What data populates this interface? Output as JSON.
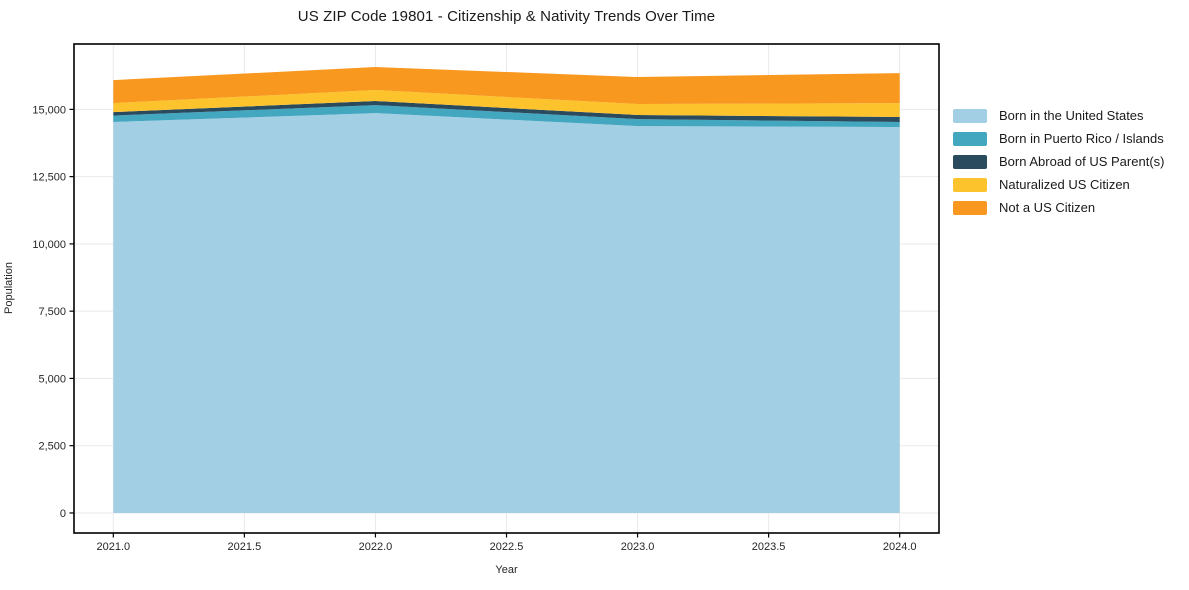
{
  "chart_data": {
    "type": "area",
    "stacked": true,
    "title": "US ZIP Code 19801 - Citizenship & Nativity Trends Over Time",
    "xlabel": "Year",
    "ylabel": "Population",
    "x": [
      2021,
      2022,
      2023,
      2024
    ],
    "xlim": [
      2020.85,
      2024.15
    ],
    "ylim": [
      -745,
      17430
    ],
    "x_ticks": [
      2021.0,
      2021.5,
      2022.0,
      2022.5,
      2023.0,
      2023.5,
      2024.0
    ],
    "x_tick_labels": [
      "2021.0",
      "2021.5",
      "2022.0",
      "2022.5",
      "2023.0",
      "2023.5",
      "2024.0"
    ],
    "y_ticks": [
      0,
      2500,
      5000,
      7500,
      10000,
      12500,
      15000
    ],
    "y_tick_labels": [
      "0",
      "2,500",
      "5,000",
      "7,500",
      "10,000",
      "12,500",
      "15,000"
    ],
    "grid": true,
    "legend_position": "right",
    "series": [
      {
        "name": "Born in the United States",
        "color": "#A3CFE4",
        "values": [
          14530,
          14860,
          14380,
          14345
        ]
      },
      {
        "name": "Born in Puerto Rico / Islands",
        "color": "#44A7C0",
        "values": [
          240,
          300,
          260,
          185
        ]
      },
      {
        "name": "Born Abroad of US Parent(s)",
        "color": "#2A4A5E",
        "values": [
          130,
          150,
          150,
          185
        ]
      },
      {
        "name": "Naturalized US Citizen",
        "color": "#FCC32D",
        "values": [
          335,
          410,
          410,
          520
        ]
      },
      {
        "name": "Not a US Citizen",
        "color": "#F8981E",
        "values": [
          855,
          855,
          1005,
          1115
        ]
      }
    ],
    "colors": {
      "grid": "#E9E9E9",
      "frame": "#000000",
      "tick": "#000000"
    }
  }
}
